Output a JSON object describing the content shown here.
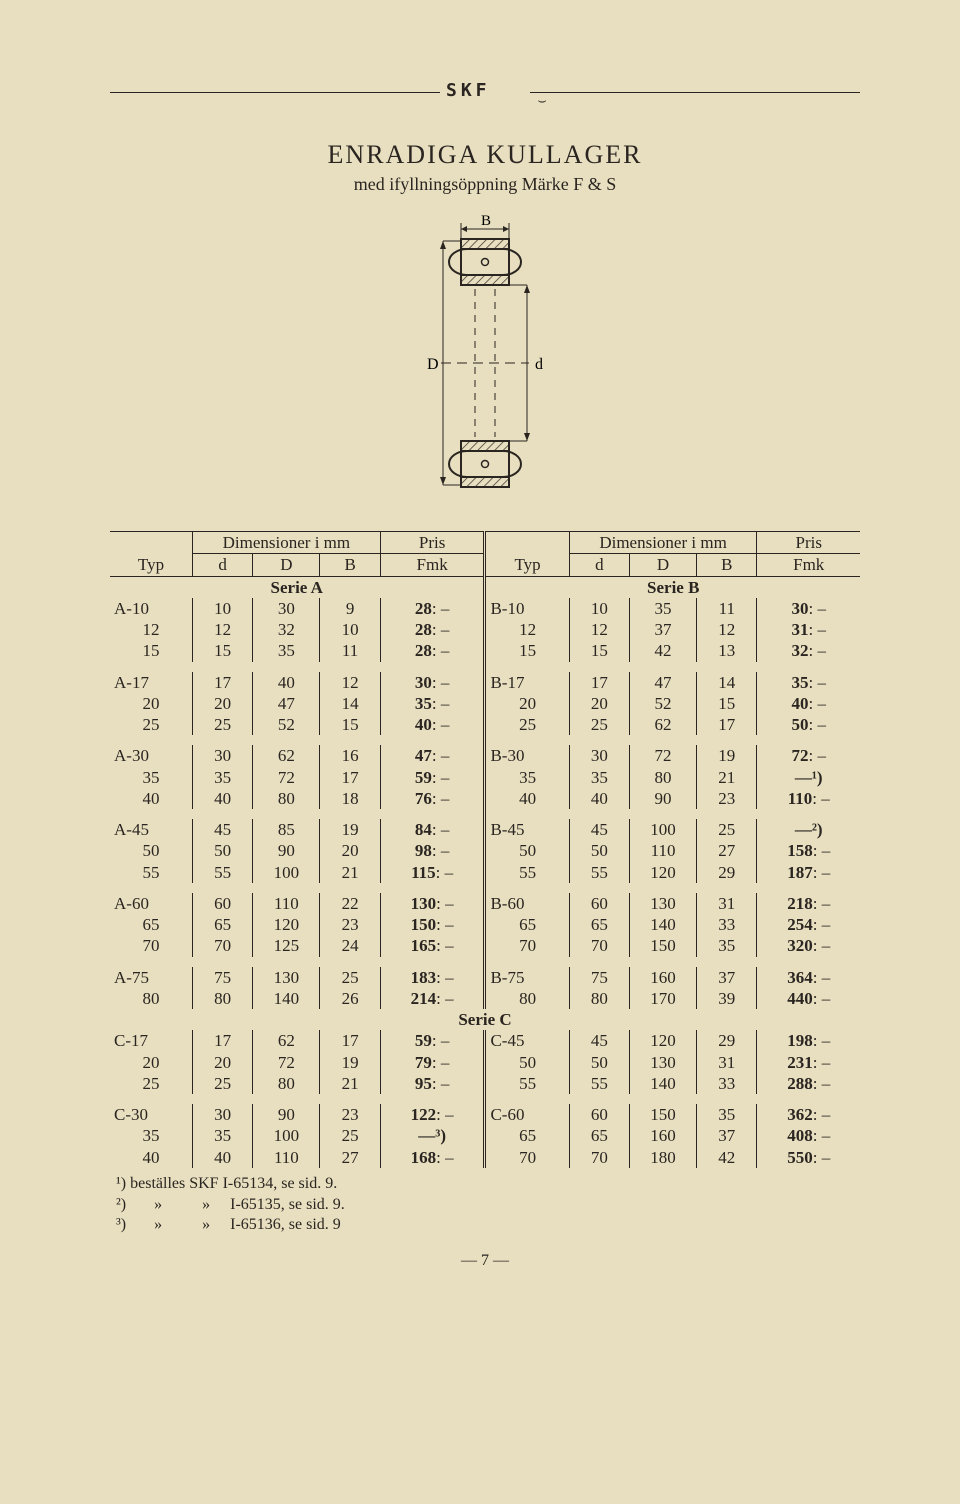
{
  "brand": "SKF",
  "mark": "⌣",
  "title": "ENRADIGA KULLAGER",
  "subtitle": "med ifyllningsöppning Märke F & S",
  "diagram": {
    "B_label": "B",
    "D_label": "D",
    "d_label": "d"
  },
  "headers": {
    "typ": "Typ",
    "dimensioner": "Dimensioner i mm",
    "pris": "Pris",
    "fmk": "Fmk",
    "d": "d",
    "D": "D",
    "B": "B"
  },
  "series_labels": {
    "A": "Serie A",
    "B": "Serie B",
    "C": "Serie C"
  },
  "groups_ab": [
    {
      "left": [
        {
          "typ": "A-10",
          "d": "10",
          "D": "30",
          "B": "9",
          "p": "28: –"
        },
        {
          "typ": "12",
          "d": "12",
          "D": "32",
          "B": "10",
          "p": "28: –"
        },
        {
          "typ": "15",
          "d": "15",
          "D": "35",
          "B": "11",
          "p": "28: –"
        }
      ],
      "right": [
        {
          "typ": "B-10",
          "d": "10",
          "D": "35",
          "B": "11",
          "p": "30: –"
        },
        {
          "typ": "12",
          "d": "12",
          "D": "37",
          "B": "12",
          "p": "31: –"
        },
        {
          "typ": "15",
          "d": "15",
          "D": "42",
          "B": "13",
          "p": "32: –"
        }
      ]
    },
    {
      "left": [
        {
          "typ": "A-17",
          "d": "17",
          "D": "40",
          "B": "12",
          "p": "30: –"
        },
        {
          "typ": "20",
          "d": "20",
          "D": "47",
          "B": "14",
          "p": "35: –"
        },
        {
          "typ": "25",
          "d": "25",
          "D": "52",
          "B": "15",
          "p": "40: –"
        }
      ],
      "right": [
        {
          "typ": "B-17",
          "d": "17",
          "D": "47",
          "B": "14",
          "p": "35: –"
        },
        {
          "typ": "20",
          "d": "20",
          "D": "52",
          "B": "15",
          "p": "40: –"
        },
        {
          "typ": "25",
          "d": "25",
          "D": "62",
          "B": "17",
          "p": "50: –"
        }
      ]
    },
    {
      "left": [
        {
          "typ": "A-30",
          "d": "30",
          "D": "62",
          "B": "16",
          "p": "47: –"
        },
        {
          "typ": "35",
          "d": "35",
          "D": "72",
          "B": "17",
          "p": "59: –"
        },
        {
          "typ": "40",
          "d": "40",
          "D": "80",
          "B": "18",
          "p": "76: –"
        }
      ],
      "right": [
        {
          "typ": "B-30",
          "d": "30",
          "D": "72",
          "B": "19",
          "p": "72: –"
        },
        {
          "typ": "35",
          "d": "35",
          "D": "80",
          "B": "21",
          "p": "—¹)"
        },
        {
          "typ": "40",
          "d": "40",
          "D": "90",
          "B": "23",
          "p": "110: –"
        }
      ]
    },
    {
      "left": [
        {
          "typ": "A-45",
          "d": "45",
          "D": "85",
          "B": "19",
          "p": "84: –"
        },
        {
          "typ": "50",
          "d": "50",
          "D": "90",
          "B": "20",
          "p": "98: –"
        },
        {
          "typ": "55",
          "d": "55",
          "D": "100",
          "B": "21",
          "p": "115: –"
        }
      ],
      "right": [
        {
          "typ": "B-45",
          "d": "45",
          "D": "100",
          "B": "25",
          "p": "—²)"
        },
        {
          "typ": "50",
          "d": "50",
          "D": "110",
          "B": "27",
          "p": "158: –"
        },
        {
          "typ": "55",
          "d": "55",
          "D": "120",
          "B": "29",
          "p": "187: –"
        }
      ]
    },
    {
      "left": [
        {
          "typ": "A-60",
          "d": "60",
          "D": "110",
          "B": "22",
          "p": "130: –"
        },
        {
          "typ": "65",
          "d": "65",
          "D": "120",
          "B": "23",
          "p": "150: –"
        },
        {
          "typ": "70",
          "d": "70",
          "D": "125",
          "B": "24",
          "p": "165: –"
        }
      ],
      "right": [
        {
          "typ": "B-60",
          "d": "60",
          "D": "130",
          "B": "31",
          "p": "218: –"
        },
        {
          "typ": "65",
          "d": "65",
          "D": "140",
          "B": "33",
          "p": "254: –"
        },
        {
          "typ": "70",
          "d": "70",
          "D": "150",
          "B": "35",
          "p": "320: –"
        }
      ]
    },
    {
      "left": [
        {
          "typ": "A-75",
          "d": "75",
          "D": "130",
          "B": "25",
          "p": "183: –"
        },
        {
          "typ": "80",
          "d": "80",
          "D": "140",
          "B": "26",
          "p": "214: –"
        }
      ],
      "right": [
        {
          "typ": "B-75",
          "d": "75",
          "D": "160",
          "B": "37",
          "p": "364: –"
        },
        {
          "typ": "80",
          "d": "80",
          "D": "170",
          "B": "39",
          "p": "440: –"
        }
      ]
    }
  ],
  "groups_c": [
    {
      "left": [
        {
          "typ": "C-17",
          "d": "17",
          "D": "62",
          "B": "17",
          "p": "59: –"
        },
        {
          "typ": "20",
          "d": "20",
          "D": "72",
          "B": "19",
          "p": "79: –"
        },
        {
          "typ": "25",
          "d": "25",
          "D": "80",
          "B": "21",
          "p": "95: –"
        }
      ],
      "right": [
        {
          "typ": "C-45",
          "d": "45",
          "D": "120",
          "B": "29",
          "p": "198: –"
        },
        {
          "typ": "50",
          "d": "50",
          "D": "130",
          "B": "31",
          "p": "231: –"
        },
        {
          "typ": "55",
          "d": "55",
          "D": "140",
          "B": "33",
          "p": "288: –"
        }
      ]
    },
    {
      "left": [
        {
          "typ": "C-30",
          "d": "30",
          "D": "90",
          "B": "23",
          "p": "122: –"
        },
        {
          "typ": "35",
          "d": "35",
          "D": "100",
          "B": "25",
          "p": "—³)"
        },
        {
          "typ": "40",
          "d": "40",
          "D": "110",
          "B": "27",
          "p": "168: –"
        }
      ],
      "right": [
        {
          "typ": "C-60",
          "d": "60",
          "D": "150",
          "B": "35",
          "p": "362: –"
        },
        {
          "typ": "65",
          "d": "65",
          "D": "160",
          "B": "37",
          "p": "408: –"
        },
        {
          "typ": "70",
          "d": "70",
          "D": "180",
          "B": "42",
          "p": "550: –"
        }
      ]
    }
  ],
  "footnotes": [
    "¹) beställes SKF I-65134, se sid. 9.",
    "²)       »          »     I-65135, se sid. 9.",
    "³)       »          »     I-65136, se sid. 9"
  ],
  "page_number": "— 7 —",
  "colors": {
    "background": "#e8dfc0",
    "text": "#2a2520",
    "hatch": "#3a342c"
  }
}
